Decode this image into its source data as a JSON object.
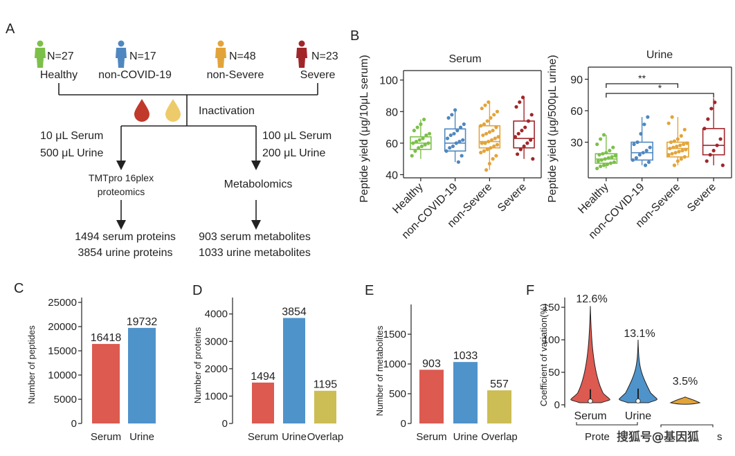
{
  "panelA": {
    "letter": "A",
    "groups": [
      {
        "count": "N=27",
        "name": "Healthy",
        "color": "#7cc04a"
      },
      {
        "count": "N=17",
        "name": "non-COVID-19",
        "color": "#4f87c0"
      },
      {
        "count": "N=48",
        "name": "non-Severe",
        "color": "#e2a43a"
      },
      {
        "count": "N=23",
        "name": "Severe",
        "color": "#a1262a"
      }
    ],
    "inactivation": "Inactivation",
    "drop_colors": {
      "serum": "#c0392b",
      "urine": "#eecb6a"
    },
    "left_cond": [
      "10 μL Serum",
      "500 μL Urine"
    ],
    "right_cond": [
      "100 μL Serum",
      "200 μL Urine"
    ],
    "left_method": [
      "TMTpro 16plex",
      "proteomics"
    ],
    "right_method": "Metabolomics",
    "left_result": [
      "1494 serum proteins",
      "3854 urine proteins"
    ],
    "right_result": [
      "903 serum metabolites",
      "1033 urine metabolites"
    ]
  },
  "chart_data": [
    {
      "id": "B-serum",
      "panel": "B",
      "type": "box",
      "title": "Serum",
      "ylabel": "Peptide yield (μg/10μL serum)",
      "ylim": [
        38,
        106
      ],
      "yticks": [
        "40",
        "60",
        "80",
        "100"
      ],
      "categories": [
        "Healthy",
        "non-COVID-19",
        "non-Severe",
        "Severe"
      ],
      "colors": [
        "#7cc04a",
        "#4f87c0",
        "#e2a43a",
        "#a1262a"
      ],
      "boxes": [
        {
          "min": 50,
          "q1": 56,
          "median": 60,
          "q3": 64,
          "max": 75
        },
        {
          "min": 48,
          "q1": 55,
          "median": 60,
          "q3": 69,
          "max": 81
        },
        {
          "min": 43,
          "q1": 57,
          "median": 61,
          "q3": 71,
          "max": 86
        },
        {
          "min": 50,
          "q1": 57,
          "median": 63,
          "q3": 74,
          "max": 89
        }
      ],
      "points": [
        [
          52,
          55,
          57,
          58,
          59,
          60,
          60,
          61,
          62,
          63,
          65,
          66,
          68,
          70,
          72,
          75
        ],
        [
          48,
          52,
          55,
          57,
          58,
          60,
          61,
          62,
          63,
          65,
          66,
          68,
          70,
          72,
          76,
          78,
          81
        ],
        [
          43,
          47,
          50,
          52,
          54,
          55,
          56,
          57,
          58,
          59,
          60,
          60,
          61,
          62,
          63,
          64,
          65,
          66,
          67,
          68,
          70,
          71,
          72,
          74,
          76,
          78,
          80,
          82,
          84,
          86
        ],
        [
          50,
          53,
          56,
          58,
          60,
          62,
          64,
          66,
          68,
          70,
          74,
          78,
          83,
          86,
          89
        ]
      ]
    },
    {
      "id": "B-urine",
      "panel": "B",
      "type": "box",
      "title": "Urine",
      "ylabel": "Peptide yield (μg/500μL urine)",
      "ylim": [
        0,
        100
      ],
      "yticks": [
        "30",
        "60",
        "90"
      ],
      "categories": [
        "Healthy",
        "non-COVID-19",
        "non-Severe",
        "Severe"
      ],
      "colors": [
        "#7cc04a",
        "#4f87c0",
        "#e2a43a",
        "#a1262a"
      ],
      "boxes": [
        {
          "min": 5,
          "q1": 10,
          "median": 14,
          "q3": 19,
          "max": 37
        },
        {
          "min": 8,
          "q1": 13,
          "median": 20,
          "q3": 30,
          "max": 54
        },
        {
          "min": 8,
          "q1": 16,
          "median": 24,
          "q3": 30,
          "max": 54
        },
        {
          "min": 8,
          "q1": 18,
          "median": 27,
          "q3": 43,
          "max": 72
        }
      ],
      "points": [
        [
          5,
          7,
          8,
          9,
          10,
          11,
          12,
          13,
          14,
          15,
          16,
          17,
          18,
          19,
          20,
          22,
          25,
          28,
          33,
          37
        ],
        [
          8,
          11,
          13,
          15,
          18,
          20,
          22,
          25,
          28,
          30,
          38,
          47,
          54
        ],
        [
          8,
          12,
          14,
          16,
          18,
          19,
          20,
          21,
          22,
          23,
          24,
          25,
          26,
          27,
          28,
          29,
          30,
          31,
          33,
          36,
          42,
          48,
          54
        ],
        [
          8,
          12,
          18,
          22,
          27,
          33,
          43,
          52,
          62,
          68
        ]
      ],
      "sig": [
        {
          "label": "**",
          "from": 0,
          "to": 2
        },
        {
          "label": "*",
          "from": 0,
          "to": 3
        }
      ]
    },
    {
      "id": "C",
      "panel": "C",
      "type": "bar",
      "ylabel": "Number of peptides",
      "categories": [
        "Serum",
        "Urine"
      ],
      "values": [
        16418,
        19732
      ],
      "value_labels": [
        "16418",
        "19732"
      ],
      "ylim": [
        0,
        26000
      ],
      "yticks": [
        "0",
        "5000",
        "10000",
        "15000",
        "20000",
        "25000"
      ],
      "colors": [
        "#dc5a50",
        "#4f93cb"
      ]
    },
    {
      "id": "D",
      "panel": "D",
      "type": "bar",
      "ylabel": "Number of proteins",
      "categories": [
        "Serum",
        "Urine",
        "Overlap"
      ],
      "values": [
        1494,
        3854,
        1195
      ],
      "value_labels": [
        "1494",
        "3854",
        "1195"
      ],
      "ylim": [
        0,
        4600
      ],
      "yticks": [
        "0",
        "1000",
        "2000",
        "3000",
        "4000"
      ],
      "colors": [
        "#dc5a50",
        "#4f93cb",
        "#ccbd54"
      ]
    },
    {
      "id": "E",
      "panel": "E",
      "type": "bar",
      "ylabel": "Number of metabolites",
      "categories": [
        "Serum",
        "Urine",
        "Overlap"
      ],
      "values": [
        903,
        1033,
        557
      ],
      "value_labels": [
        "903",
        "1033",
        "557"
      ],
      "ylim": [
        0,
        2000
      ],
      "yticks": [
        "0",
        "500",
        "1000",
        "1500"
      ],
      "colors": [
        "#dc5a50",
        "#4f93cb",
        "#ccbd54"
      ]
    },
    {
      "id": "F",
      "panel": "F",
      "type": "violin",
      "ylabel": "Coefficient of variation(%)",
      "categories": [
        "Serum",
        "Urine",
        ""
      ],
      "medians": [
        12.6,
        13.1,
        3.5
      ],
      "value_labels": [
        "12.6%",
        "13.1%",
        "3.5%"
      ],
      "ylim": [
        0,
        165
      ],
      "yticks": [
        "0",
        "50",
        "100",
        "150"
      ],
      "colors": [
        "#dc5a50",
        "#4f93cb",
        "#e2a43a"
      ],
      "maxes": [
        152,
        100,
        12
      ],
      "group_label": "Prote",
      "group_label_tail": "s"
    }
  ],
  "panel_letters": {
    "B": "B",
    "C": "C",
    "D": "D",
    "E": "E",
    "F": "F"
  },
  "watermark": "搜狐号@基因狐"
}
